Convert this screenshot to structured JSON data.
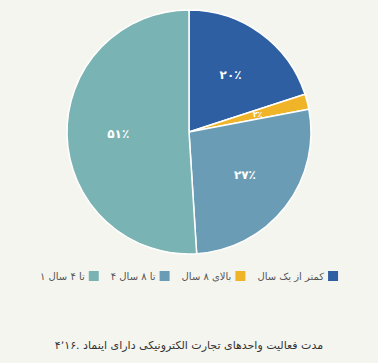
{
  "chart_data": {
    "type": "pie",
    "title": "۴٬۱۶. مدت فعالیت واحدهای تجارت الکترونیکی دارای اینماد",
    "categories": [
      "کمتر از یک سال",
      "بالای ۸ سال",
      "۴ تا ۸ سال",
      "۱ تا ۴ سال"
    ],
    "values": [
      20,
      2,
      27,
      51
    ],
    "value_labels": [
      "۲۰٪",
      "۲٪",
      "۲۷٪",
      "۵۱٪"
    ],
    "colors": [
      "#2e5fa3",
      "#f0b429",
      "#6a9db5",
      "#7ab3b3"
    ],
    "data_labels": true,
    "legend": "bottom"
  }
}
